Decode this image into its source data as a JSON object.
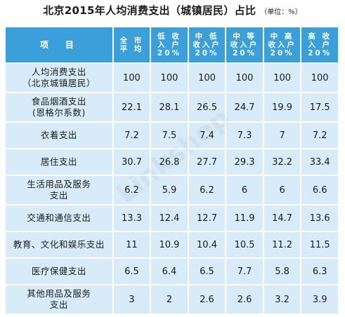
{
  "title": "北京2015年人均消费支出（城镇居民）占比",
  "unit": "（单位：%）",
  "colors": {
    "header_bg": "#3b9fd9",
    "cell_bg": "#d7ebf8"
  },
  "table": {
    "headers": [
      {
        "lines": [
          "项　目"
        ]
      },
      {
        "lines": [
          "全 市",
          "平 均"
        ]
      },
      {
        "lines": [
          "低 收",
          "入 户",
          "20%"
        ]
      },
      {
        "lines": [
          "中 低",
          "收入户",
          "20%"
        ]
      },
      {
        "lines": [
          "中 等",
          "收入户",
          "20%"
        ]
      },
      {
        "lines": [
          "中 高",
          "收入户",
          "20%"
        ]
      },
      {
        "lines": [
          "高 收",
          "入 户",
          "20%"
        ]
      }
    ],
    "rows": [
      {
        "label": [
          "人均消费支出",
          "（北京城镇居民）"
        ],
        "values": [
          "100",
          "100",
          "100",
          "100",
          "100",
          "100"
        ]
      },
      {
        "label": [
          "食品烟酒支出",
          "(恩格尔系数)"
        ],
        "values": [
          "22.1",
          "28.1",
          "26.5",
          "24.7",
          "19.9",
          "17.5"
        ]
      },
      {
        "label": [
          "衣着支出"
        ],
        "values": [
          "7.2",
          "7.5",
          "7.4",
          "7.3",
          "7",
          "7.2"
        ]
      },
      {
        "label": [
          "居住支出"
        ],
        "values": [
          "30.7",
          "26.8",
          "27.7",
          "29.3",
          "32.2",
          "33.4"
        ]
      },
      {
        "label": [
          "生活用品及服务",
          "支出"
        ],
        "values": [
          "6.2",
          "5.9",
          "6.2",
          "6",
          "6",
          "6.6"
        ]
      },
      {
        "label": [
          "交通和通信支出"
        ],
        "values": [
          "13.3",
          "12.4",
          "12.7",
          "11.9",
          "14.7",
          "13.6"
        ]
      },
      {
        "label": [
          "教育、文化和娱乐支出"
        ],
        "values": [
          "11",
          "10.9",
          "10.4",
          "10.5",
          "11.2",
          "11.5"
        ]
      },
      {
        "label": [
          "医疗保健支出"
        ],
        "values": [
          "6.5",
          "6.4",
          "6.5",
          "7.7",
          "5.8",
          "6.3"
        ]
      },
      {
        "label": [
          "其他用品及服务",
          "支出"
        ],
        "values": [
          "3",
          "2",
          "2.6",
          "2.6",
          "3.2",
          "3.9"
        ]
      }
    ]
  }
}
